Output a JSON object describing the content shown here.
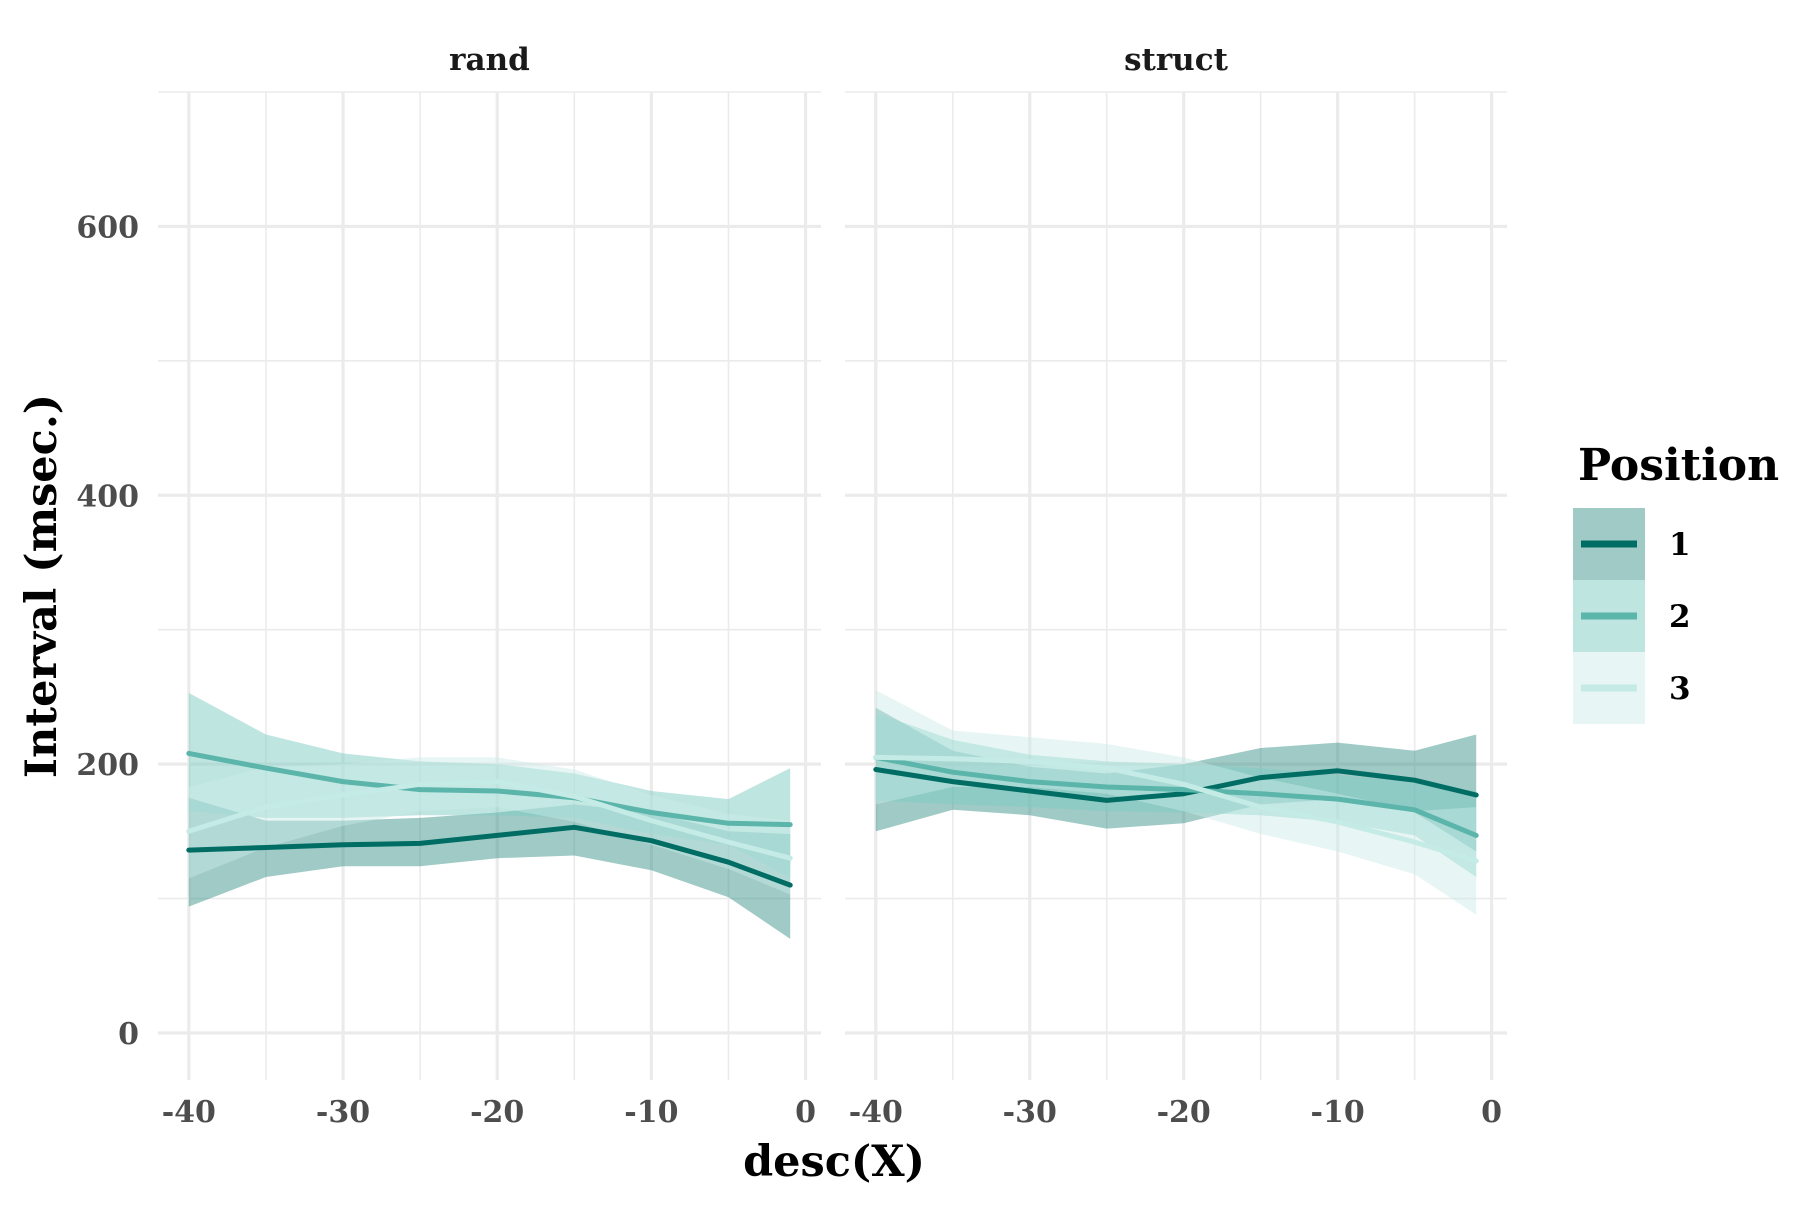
{
  "chart_data": {
    "type": "line",
    "xlabel": "desc(X)",
    "ylabel": "Interval (msec.)",
    "xlim": [
      -42,
      1
    ],
    "ylim": [
      -35,
      700
    ],
    "x_ticks": [
      -40,
      -30,
      -20,
      -10,
      0
    ],
    "x_tick_labels": [
      "-40",
      "-30",
      "-20",
      "-10",
      "0"
    ],
    "y_ticks": [
      0,
      200,
      400,
      600
    ],
    "y_tick_labels": [
      "0",
      "200",
      "400",
      "600"
    ],
    "grid": true,
    "legend": {
      "title": "Position",
      "placement": "right",
      "entries": [
        "1",
        "2",
        "3"
      ]
    },
    "series_style": {
      "1": {
        "line": "#006d64",
        "fill": "#2a8a80",
        "fill_opacity": 0.45
      },
      "2": {
        "line": "#5bb5aa",
        "fill": "#7fcbc3",
        "fill_opacity": 0.5
      },
      "3": {
        "line": "#c5ebe6",
        "fill": "#c9ece7",
        "fill_opacity": 0.45
      }
    },
    "panels": [
      {
        "label": "rand",
        "series": [
          {
            "name": "1",
            "x": [
              -40,
              -35,
              -30,
              -25,
              -20,
              -15,
              -10,
              -5,
              -1
            ],
            "y": [
              136,
              138,
              140,
              141,
              147,
              153,
              143,
              127,
              110
            ],
            "lower": [
              94,
              116,
              124,
              124,
              130,
              132,
              121,
              101,
              70
            ],
            "upper": [
              175,
              158,
              158,
              160,
              164,
              170,
              164,
              150,
              148
            ]
          },
          {
            "name": "2",
            "x": [
              -40,
              -35,
              -30,
              -25,
              -20,
              -15,
              -10,
              -5,
              -1
            ],
            "y": [
              208,
              197,
              187,
              181,
              180,
              175,
              164,
              156,
              155
            ],
            "lower": [
              165,
              160,
              160,
              162,
              162,
              160,
              148,
              140,
              115
            ],
            "upper": [
              253,
              222,
              208,
              202,
              200,
              193,
              180,
              174,
              197
            ]
          },
          {
            "name": "3",
            "x": [
              -40,
              -35,
              -30,
              -25,
              -20,
              -15,
              -10,
              -5,
              -1
            ],
            "y": [
              150,
              168,
              177,
              185,
              187,
              176,
              158,
              142,
              130
            ],
            "lower": [
              115,
              138,
              154,
              165,
              168,
              157,
              140,
              122,
              103
            ],
            "upper": [
              183,
              198,
              200,
              205,
              205,
              196,
              177,
              163,
              158
            ]
          }
        ]
      },
      {
        "label": "struct",
        "series": [
          {
            "name": "1",
            "x": [
              -40,
              -35,
              -30,
              -25,
              -20,
              -15,
              -10,
              -5,
              -1
            ],
            "y": [
              196,
              187,
              180,
              173,
              178,
              190,
              195,
              188,
              177
            ],
            "lower": [
              150,
              166,
              162,
              152,
              156,
              170,
              174,
              164,
              135
            ],
            "upper": [
              242,
              210,
              198,
              193,
              200,
              212,
              216,
              210,
              222
            ]
          },
          {
            "name": "2",
            "x": [
              -40,
              -35,
              -30,
              -25,
              -20,
              -15,
              -10,
              -5,
              -1
            ],
            "y": [
              205,
              194,
              187,
              183,
              181,
              178,
              174,
              166,
              147
            ],
            "lower": [
              173,
              170,
              168,
              165,
              164,
              162,
              157,
              147,
              116
            ],
            "upper": [
              238,
              218,
              207,
              202,
              200,
              197,
              192,
              186,
              180
            ]
          },
          {
            "name": "3",
            "x": [
              -40,
              -35,
              -30,
              -25,
              -20,
              -15,
              -10,
              -5,
              -1
            ],
            "y": [
              205,
              204,
              202,
              197,
              185,
              168,
              157,
              142,
              128
            ],
            "lower": [
              170,
              183,
              183,
              178,
              165,
              148,
              135,
              118,
              88
            ],
            "upper": [
              255,
              225,
              220,
              215,
              205,
              190,
              178,
              165,
              168
            ]
          }
        ]
      }
    ]
  }
}
